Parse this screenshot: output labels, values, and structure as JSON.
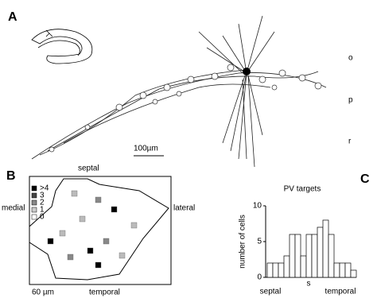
{
  "panel_a": {
    "label": "A",
    "layers": [
      "o",
      "p",
      "r"
    ],
    "scale_bar": "100µm"
  },
  "panel_b": {
    "label": "B",
    "top": "septal",
    "left": "medial",
    "right": "lateral",
    "bottom": "temporal",
    "scale_bar": "60 µm",
    "legend": [
      ">4",
      "3",
      "2",
      "1",
      "0"
    ]
  },
  "chart_data": {
    "type": "bar",
    "panel_label": "C",
    "title": "PV targets",
    "ylabel": "number of cells",
    "categories": [
      null,
      null,
      null,
      null,
      null,
      null,
      null,
      null,
      null,
      null,
      null,
      null,
      null,
      null,
      null,
      null
    ],
    "values": [
      2,
      2,
      2,
      3,
      6,
      6,
      3,
      6,
      6,
      7,
      8,
      6,
      2,
      2,
      2,
      1
    ],
    "color": "#ffffff",
    "ylim": [
      0,
      10
    ],
    "yticks": [
      0,
      5,
      10
    ],
    "x_annotations": [
      "septal",
      "s",
      "temporal"
    ]
  }
}
